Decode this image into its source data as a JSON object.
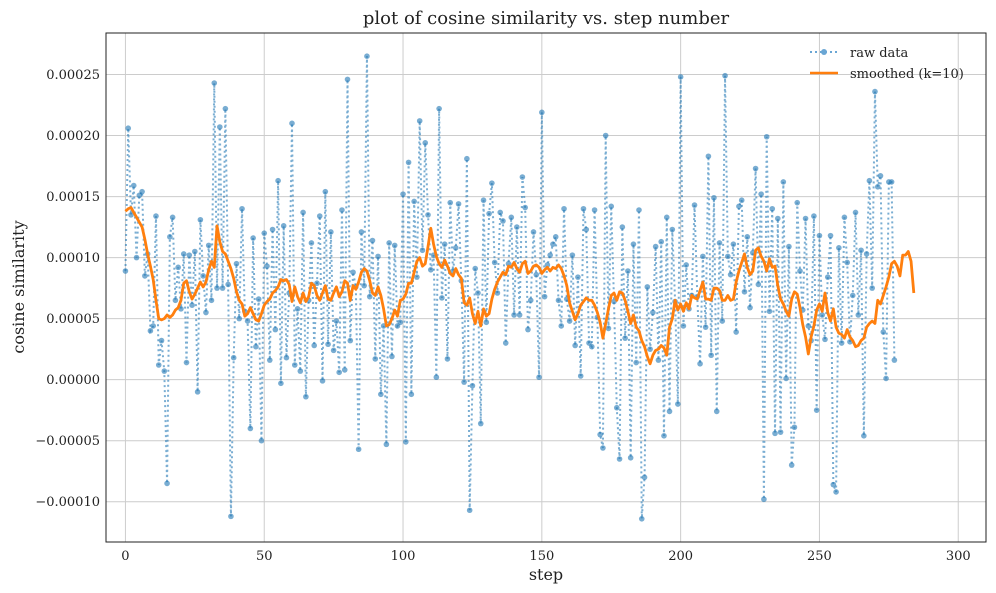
{
  "chart_data": {
    "type": "line",
    "title": "plot of cosine similarity vs. step number",
    "xlabel": "step",
    "ylabel": "cosine similarity",
    "xlim": [
      -7,
      310
    ],
    "ylim": [
      -0.000133,
      0.000284
    ],
    "xticks": [
      0,
      50,
      100,
      150,
      200,
      250,
      300
    ],
    "yticks": [
      -0.0001,
      -5e-05,
      0,
      5e-05,
      0.0001,
      0.00015,
      0.0002,
      0.00025
    ],
    "xtick_labels": [
      "0",
      "50",
      "100",
      "150",
      "200",
      "250",
      "300"
    ],
    "ytick_labels": [
      "−0.00010",
      "−0.00005",
      "0.00000",
      "0.00005",
      "0.00010",
      "0.00015",
      "0.00020",
      "0.00025"
    ],
    "grid": true,
    "legend_position": "top-right",
    "series": [
      {
        "name": "raw data",
        "style": "dotted-with-markers",
        "color": "#1f77b4",
        "x_start": 0,
        "x_step": 1,
        "values": [
          8.9e-05,
          0.000206,
          0.000135,
          0.000159,
          0.0001,
          0.000151,
          0.000154,
          8.5e-05,
          0.000103,
          4e-05,
          4.4e-05,
          0.000134,
          1.2e-05,
          3.2e-05,
          7e-06,
          -8.5e-05,
          0.000117,
          0.000133,
          6.5e-05,
          9.2e-05,
          5.8e-05,
          0.000103,
          1.4e-05,
          0.000102,
          6.1e-05,
          0.000105,
          -1e-05,
          0.000131,
          8.5e-05,
          5.5e-05,
          0.00011,
          6.5e-05,
          0.000243,
          7.5e-05,
          0.000207,
          7.5e-05,
          0.000222,
          7.8e-05,
          -0.000112,
          1.8e-05,
          9.5e-05,
          5e-05,
          0.00014,
          5.6e-05,
          4.8e-05,
          -4e-05,
          0.000116,
          2.7e-05,
          6.6e-05,
          -5e-05,
          0.00012,
          9.3e-05,
          1.6e-05,
          0.000123,
          4.1e-05,
          0.000163,
          -3e-06,
          0.000126,
          1.8e-05,
          7.1e-05,
          0.00021,
          1.2e-05,
          5.8e-05,
          7e-06,
          0.000137,
          -1.4e-05,
          6.5e-05,
          0.000112,
          2.8e-05,
          7.9e-05,
          0.000134,
          -1e-06,
          0.000154,
          2.9e-05,
          0.000121,
          2.4e-05,
          4.8e-05,
          6e-06,
          0.000139,
          8e-06,
          0.000246,
          3.2e-05,
          8.8e-05,
          7.6e-05,
          -5.7e-05,
          0.000121,
          7.7e-05,
          0.000265,
          6.8e-05,
          0.000114,
          1.7e-05,
          0.000101,
          -1.2e-05,
          4.4e-05,
          -5.3e-05,
          0.000112,
          1.9e-05,
          0.00011,
          4.4e-05,
          4.7e-05,
          0.000152,
          -5.1e-05,
          0.000178,
          -1.2e-05,
          0.000146,
          8.4e-05,
          0.000212,
          0.000106,
          0.000194,
          0.000135,
          9e-05,
          0.000102,
          2e-06,
          0.000222,
          6.7e-05,
          0.000111,
          1.7e-05,
          0.000145,
          8.9e-05,
          0.000108,
          0.000144,
          8.1e-05,
          -2e-06,
          0.000181,
          -0.000107,
          -5e-06,
          9.1e-05,
          7.1e-05,
          -3.6e-05,
          0.000147,
          4.7e-05,
          0.000136,
          0.000161,
          9.6e-05,
          7.1e-05,
          0.000137,
          0.00013,
          3e-05,
          9.5e-05,
          0.000133,
          5.3e-05,
          0.000125,
          5.3e-05,
          0.000166,
          0.000141,
          4.1e-05,
          6.5e-05,
          0.000121,
          8.6e-05,
          2e-06,
          0.000219,
          6.8e-05,
          9.4e-05,
          0.000102,
          0.000111,
          0.000117,
          6.5e-05,
          4.4e-05,
          0.00014,
          6.6e-05,
          4.8e-05,
          0.000102,
          2.8e-05,
          8.4e-05,
          3e-06,
          0.00014,
          0.000123,
          3e-05,
          2.7e-05,
          0.000139,
          5.1e-05,
          -4.5e-05,
          -5.6e-05,
          0.0002,
          4.2e-05,
          0.000142,
          6.4e-05,
          -2.3e-05,
          -6.5e-05,
          0.000125,
          3.4e-05,
          8.9e-05,
          -6.4e-05,
          0.000111,
          1.4e-05,
          0.000139,
          -0.000114,
          -8e-05,
          7.6e-05,
          2.5e-05,
          5.5e-05,
          0.000109,
          1.6e-05,
          0.000113,
          -4.6e-05,
          0.000133,
          -2.6e-05,
          0.000123,
          6.4e-05,
          -2e-05,
          0.000248,
          4.4e-05,
          9.4e-05,
          5.8e-05,
          6.9e-05,
          0.000143,
          6.8e-05,
          1.3e-05,
          0.000101,
          4.3e-05,
          0.000183,
          2e-05,
          0.000149,
          -2.6e-05,
          0.000112,
          4.8e-05,
          0.000249,
          0.000101,
          8.6e-05,
          0.000111,
          3.9e-05,
          0.000142,
          0.000147,
          7.2e-05,
          0.000117,
          5.9e-05,
          0.000104,
          0.000173,
          7.8e-05,
          0.000152,
          -9.8e-05,
          0.000199,
          5.6e-05,
          0.00014,
          -4.4e-05,
          0.000132,
          -4.3e-05,
          0.000162,
          1e-06,
          0.000109,
          -7e-05,
          -3.9e-05,
          0.000145,
          8.9e-05,
          5.7e-05,
          0.000132,
          4.4e-05,
          3.2e-05,
          0.000134,
          -2.5e-05,
          0.000118,
          5.3e-05,
          3.3e-05,
          8.4e-05,
          0.000118,
          -8.6e-05,
          -9.2e-05,
          0.000108,
          3e-05,
          0.000133,
          9.6e-05,
          3.1e-05,
          6.9e-05,
          0.000137,
          5.3e-05,
          0.000106,
          -4.6e-05,
          0.000103,
          0.000163,
          7.5e-05,
          0.000236,
          0.000158,
          0.000167,
          3.9e-05,
          1e-06,
          0.000162,
          0.000162,
          1.6e-05
        ]
      },
      {
        "name": "smoothed (k=10)",
        "style": "solid",
        "color": "#ff7f0e",
        "x_start": 0,
        "x_step": 1,
        "values": [
          0.000138,
          0.00014,
          0.000141,
          0.000137,
          0.000133,
          0.000129,
          0.000125,
          0.000115,
          0.000103,
          9.3e-05,
          8.2e-05,
          6.5e-05,
          5e-05,
          4.9e-05,
          5e-05,
          5.3e-05,
          5.1e-05,
          5.3e-05,
          5.7e-05,
          5.9e-05,
          6.5e-05,
          7.9e-05,
          8.1e-05,
          7.2e-05,
          6.6e-05,
          7e-05,
          7.5e-05,
          8e-05,
          7.6e-05,
          8e-05,
          9e-05,
          9.7e-05,
          9.2e-05,
          0.000126,
          0.000113,
          0.000105,
          0.000103,
          9.7e-05,
          9.1e-05,
          8.3e-05,
          7.2e-05,
          6.5e-05,
          6.2e-05,
          5.2e-05,
          5.4e-05,
          5.9e-05,
          5.4e-05,
          4.9e-05,
          4.8e-05,
          5.4e-05,
          6.1e-05,
          6.4e-05,
          6.6e-05,
          7.1e-05,
          7.3e-05,
          7.6e-05,
          8.2e-05,
          8.1e-05,
          8.2e-05,
          7.8e-05,
          6.4e-05,
          7.6e-05,
          6.8e-05,
          6.3e-05,
          7.1e-05,
          6.4e-05,
          6.8e-05,
          7.9e-05,
          7.7e-05,
          6.9e-05,
          6.5e-05,
          7.1e-05,
          7.7e-05,
          6.6e-05,
          6.5e-05,
          7.1e-05,
          7.6e-05,
          6.8e-05,
          7.2e-05,
          8.1e-05,
          7.9e-05,
          6.5e-05,
          7.7e-05,
          7.4e-05,
          8e-05,
          8.8e-05,
          9.1e-05,
          8.9e-05,
          8.1e-05,
          7.1e-05,
          6.9e-05,
          7.6e-05,
          6.9e-05,
          5.8e-05,
          4.4e-05,
          4.5e-05,
          5e-05,
          5.7e-05,
          5.2e-05,
          6.5e-05,
          6.6e-05,
          7e-05,
          7.9e-05,
          7.9e-05,
          8.8e-05,
          9.7e-05,
          0.0001,
          9.3e-05,
          9.5e-05,
          0.000109,
          0.000124,
          0.000111,
          0.000101,
          9.5e-05,
          9.2e-05,
          9.8e-05,
          9.3e-05,
          8.7e-05,
          8.5e-05,
          9.1e-05,
          8.6e-05,
          8.3e-05,
          6.3e-05,
          6.1e-05,
          6.7e-05,
          5.4e-05,
          4.6e-05,
          5.6e-05,
          4.4e-05,
          5.8e-05,
          5.2e-05,
          5.4e-05,
          6.6e-05,
          7.4e-05,
          8e-05,
          8.4e-05,
          8.8e-05,
          8.6e-05,
          9.3e-05,
          9.2e-05,
          9.6e-05,
          9.1e-05,
          8.8e-05,
          9.5e-05,
          9.7e-05,
          8.7e-05,
          8.9e-05,
          9.3e-05,
          9.4e-05,
          9.2e-05,
          8.7e-05,
          9e-05,
          9.2e-05,
          8.9e-05,
          9.2e-05,
          9.1e-05,
          9.4e-05,
          9.1e-05,
          8.5e-05,
          7.7e-05,
          6.3e-05,
          5.6e-05,
          4.9e-05,
          5.4e-05,
          6.1e-05,
          6.4e-05,
          6.7e-05,
          6.5e-05,
          6.5e-05,
          6.1e-05,
          5.5e-05,
          4.7e-05,
          3.4e-05,
          4.6e-05,
          5.8e-05,
          6.9e-05,
          7.1e-05,
          6.5e-05,
          7.2e-05,
          7.1e-05,
          6.5e-05,
          5.6e-05,
          4.6e-05,
          5.3e-05,
          4.3e-05,
          4e-05,
          3.2e-05,
          2.7e-05,
          1.9e-05,
          1.3e-05,
          2e-05,
          2.4e-05,
          2.5e-05,
          2.8e-05,
          2.6e-05,
          2e-05,
          4.3e-05,
          5e-05,
          6.5e-05,
          5.7e-05,
          6.2e-05,
          5.6e-05,
          6.3e-05,
          5.8e-05,
          6.9e-05,
          6.7e-05,
          6.6e-05,
          7.3e-05,
          8e-05,
          6.6e-05,
          6.6e-05,
          6.5e-05,
          7.5e-05,
          7.5e-05,
          7.3e-05,
          6.5e-05,
          6.5e-05,
          6.9e-05,
          6.5e-05,
          6.6e-05,
          8e-05,
          8.9e-05,
          9.6e-05,
          0.000103,
          9.2e-05,
          8.6e-05,
          8.9e-05,
          0.000106,
          0.000108,
          0.000101,
          9.7e-05,
          8.9e-05,
          9.9e-05,
          9.2e-05,
          9.3e-05,
          7.7e-05,
          6.6e-05,
          6.2e-05,
          5.6e-05,
          5.2e-05,
          6.6e-05,
          7.2e-05,
          7e-05,
          5.9e-05,
          4.5e-05,
          3.5e-05,
          2.1e-05,
          3.5e-05,
          4.4e-05,
          5.7e-05,
          6.2e-05,
          5.6e-05,
          7.1e-05,
          5.5e-05,
          4.8e-05,
          5.8e-05,
          4.3e-05,
          3.8e-05,
          3.7e-05,
          3.4e-05,
          4.1e-05,
          3.5e-05,
          3.2e-05,
          2.7e-05,
          2.8e-05,
          3.2e-05,
          3.4e-05,
          4.3e-05,
          4.6e-05,
          4.8e-05,
          4.6e-05,
          6.5e-05,
          6.2e-05,
          6.9e-05,
          7.6e-05,
          8.4e-05,
          9.5e-05,
          9.7e-05,
          9.3e-05,
          8.5e-05,
          0.000102,
          0.000102,
          0.000105,
          9.7e-05,
          7.1e-05
        ]
      }
    ]
  }
}
